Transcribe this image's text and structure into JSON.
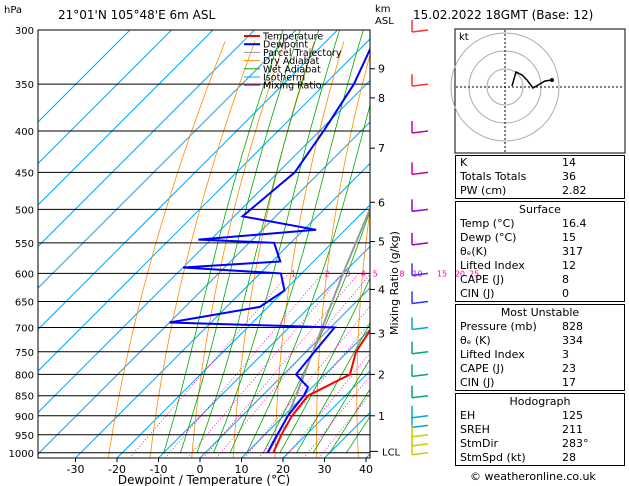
{
  "header": {
    "location": "21°01'N  105°48'E  6m  ASL",
    "date": "15.02.2022  18GMT  (Base: 12)",
    "hpa_label": "hPa",
    "km_label": "km",
    "asl_label": "ASL"
  },
  "legend": [
    "Temperature",
    "Dewpoint",
    "Parcel Trajectory",
    "Dry Adiabat",
    "Wet Adiabat",
    "Isotherm",
    "Mixing Ratio"
  ],
  "legend_colors": [
    "#ff0000",
    "#0000ff",
    "#999999",
    "#ff8c00",
    "#00aa00",
    "#00aaff",
    "#ff00aa"
  ],
  "chart_data": {
    "type": "skew-t",
    "xlabel": "Dewpoint / Temperature (°C)",
    "ylabel_right": "Mixing Ratio (g/kg)",
    "pressure_levels": [
      300,
      350,
      400,
      450,
      500,
      550,
      600,
      650,
      700,
      750,
      800,
      850,
      900,
      950,
      1000
    ],
    "temp_ticks": [
      -30,
      -20,
      -10,
      0,
      10,
      20,
      30,
      40
    ],
    "xlim": [
      -40,
      40
    ],
    "ylim": [
      1015,
      300
    ],
    "km_ticks": [
      {
        "km": "9",
        "p": 335
      },
      {
        "km": "8",
        "p": 364
      },
      {
        "km": "7",
        "p": 420
      },
      {
        "km": "6",
        "p": 490
      },
      {
        "km": "5",
        "p": 548
      },
      {
        "km": "4",
        "p": 628
      },
      {
        "km": "3",
        "p": 712
      },
      {
        "km": "2",
        "p": 800
      },
      {
        "km": "1",
        "p": 900
      }
    ],
    "lcl": {
      "label": "LCL",
      "p": 996
    },
    "mixing_ratio_labels": [
      "1",
      "2",
      "3",
      "4",
      "5",
      "8",
      "10",
      "15",
      "20",
      "25"
    ],
    "temperature": [
      [
        1000,
        16.4
      ],
      [
        950,
        14
      ],
      [
        900,
        12
      ],
      [
        850,
        11
      ],
      [
        800,
        16
      ],
      [
        750,
        12
      ],
      [
        700,
        10
      ],
      [
        680,
        13
      ],
      [
        650,
        10
      ],
      [
        600,
        4
      ],
      [
        550,
        0
      ],
      [
        500,
        -3
      ],
      [
        450,
        -10
      ],
      [
        400,
        -14
      ],
      [
        350,
        -22
      ],
      [
        300,
        -31
      ]
    ],
    "dewpoint": [
      [
        1000,
        15
      ],
      [
        950,
        13
      ],
      [
        900,
        11
      ],
      [
        850,
        10
      ],
      [
        830,
        9
      ],
      [
        800,
        3
      ],
      [
        750,
        2
      ],
      [
        700,
        1
      ],
      [
        690,
        -40
      ],
      [
        660,
        -22
      ],
      [
        630,
        -20
      ],
      [
        600,
        -25
      ],
      [
        590,
        -50
      ],
      [
        580,
        -28
      ],
      [
        550,
        -34
      ],
      [
        545,
        -53
      ],
      [
        530,
        -27
      ],
      [
        510,
        -48
      ],
      [
        450,
        -46
      ],
      [
        400,
        -49
      ],
      [
        350,
        -53
      ],
      [
        300,
        -60
      ]
    ],
    "parcel": [
      [
        996,
        15
      ],
      [
        900,
        11
      ],
      [
        800,
        5
      ],
      [
        700,
        -2
      ],
      [
        600,
        -10
      ],
      [
        500,
        -19
      ],
      [
        400,
        -30
      ],
      [
        300,
        -45
      ]
    ]
  },
  "indices": [
    {
      "k": "K",
      "v": "14"
    },
    {
      "k": "Totals Totals",
      "v": "36"
    },
    {
      "k": "PW (cm)",
      "v": "2.82"
    }
  ],
  "surface": {
    "title": "Surface",
    "rows": [
      {
        "k": "Temp (°C)",
        "v": "16.4"
      },
      {
        "k": "Dewp (°C)",
        "v": "15"
      },
      {
        "k": "θₑ(K)",
        "v": "317"
      },
      {
        "k": "Lifted Index",
        "v": "12"
      },
      {
        "k": "CAPE (J)",
        "v": "8"
      },
      {
        "k": "CIN (J)",
        "v": "0"
      }
    ]
  },
  "unstable": {
    "title": "Most Unstable",
    "rows": [
      {
        "k": "Pressure (mb)",
        "v": "828"
      },
      {
        "k": "θₑ (K)",
        "v": "334"
      },
      {
        "k": "Lifted Index",
        "v": "3"
      },
      {
        "k": "CAPE (J)",
        "v": "23"
      },
      {
        "k": "CIN (J)",
        "v": "17"
      }
    ]
  },
  "hodograph": {
    "title": "Hodograph",
    "label": "kt",
    "rows": [
      {
        "k": "EH",
        "v": "125"
      },
      {
        "k": "SREH",
        "v": "211"
      },
      {
        "k": "StmDir",
        "v": "283°"
      },
      {
        "k": "StmSpd (kt)",
        "v": "28"
      }
    ]
  },
  "credit": "© weatheronline.co.uk"
}
